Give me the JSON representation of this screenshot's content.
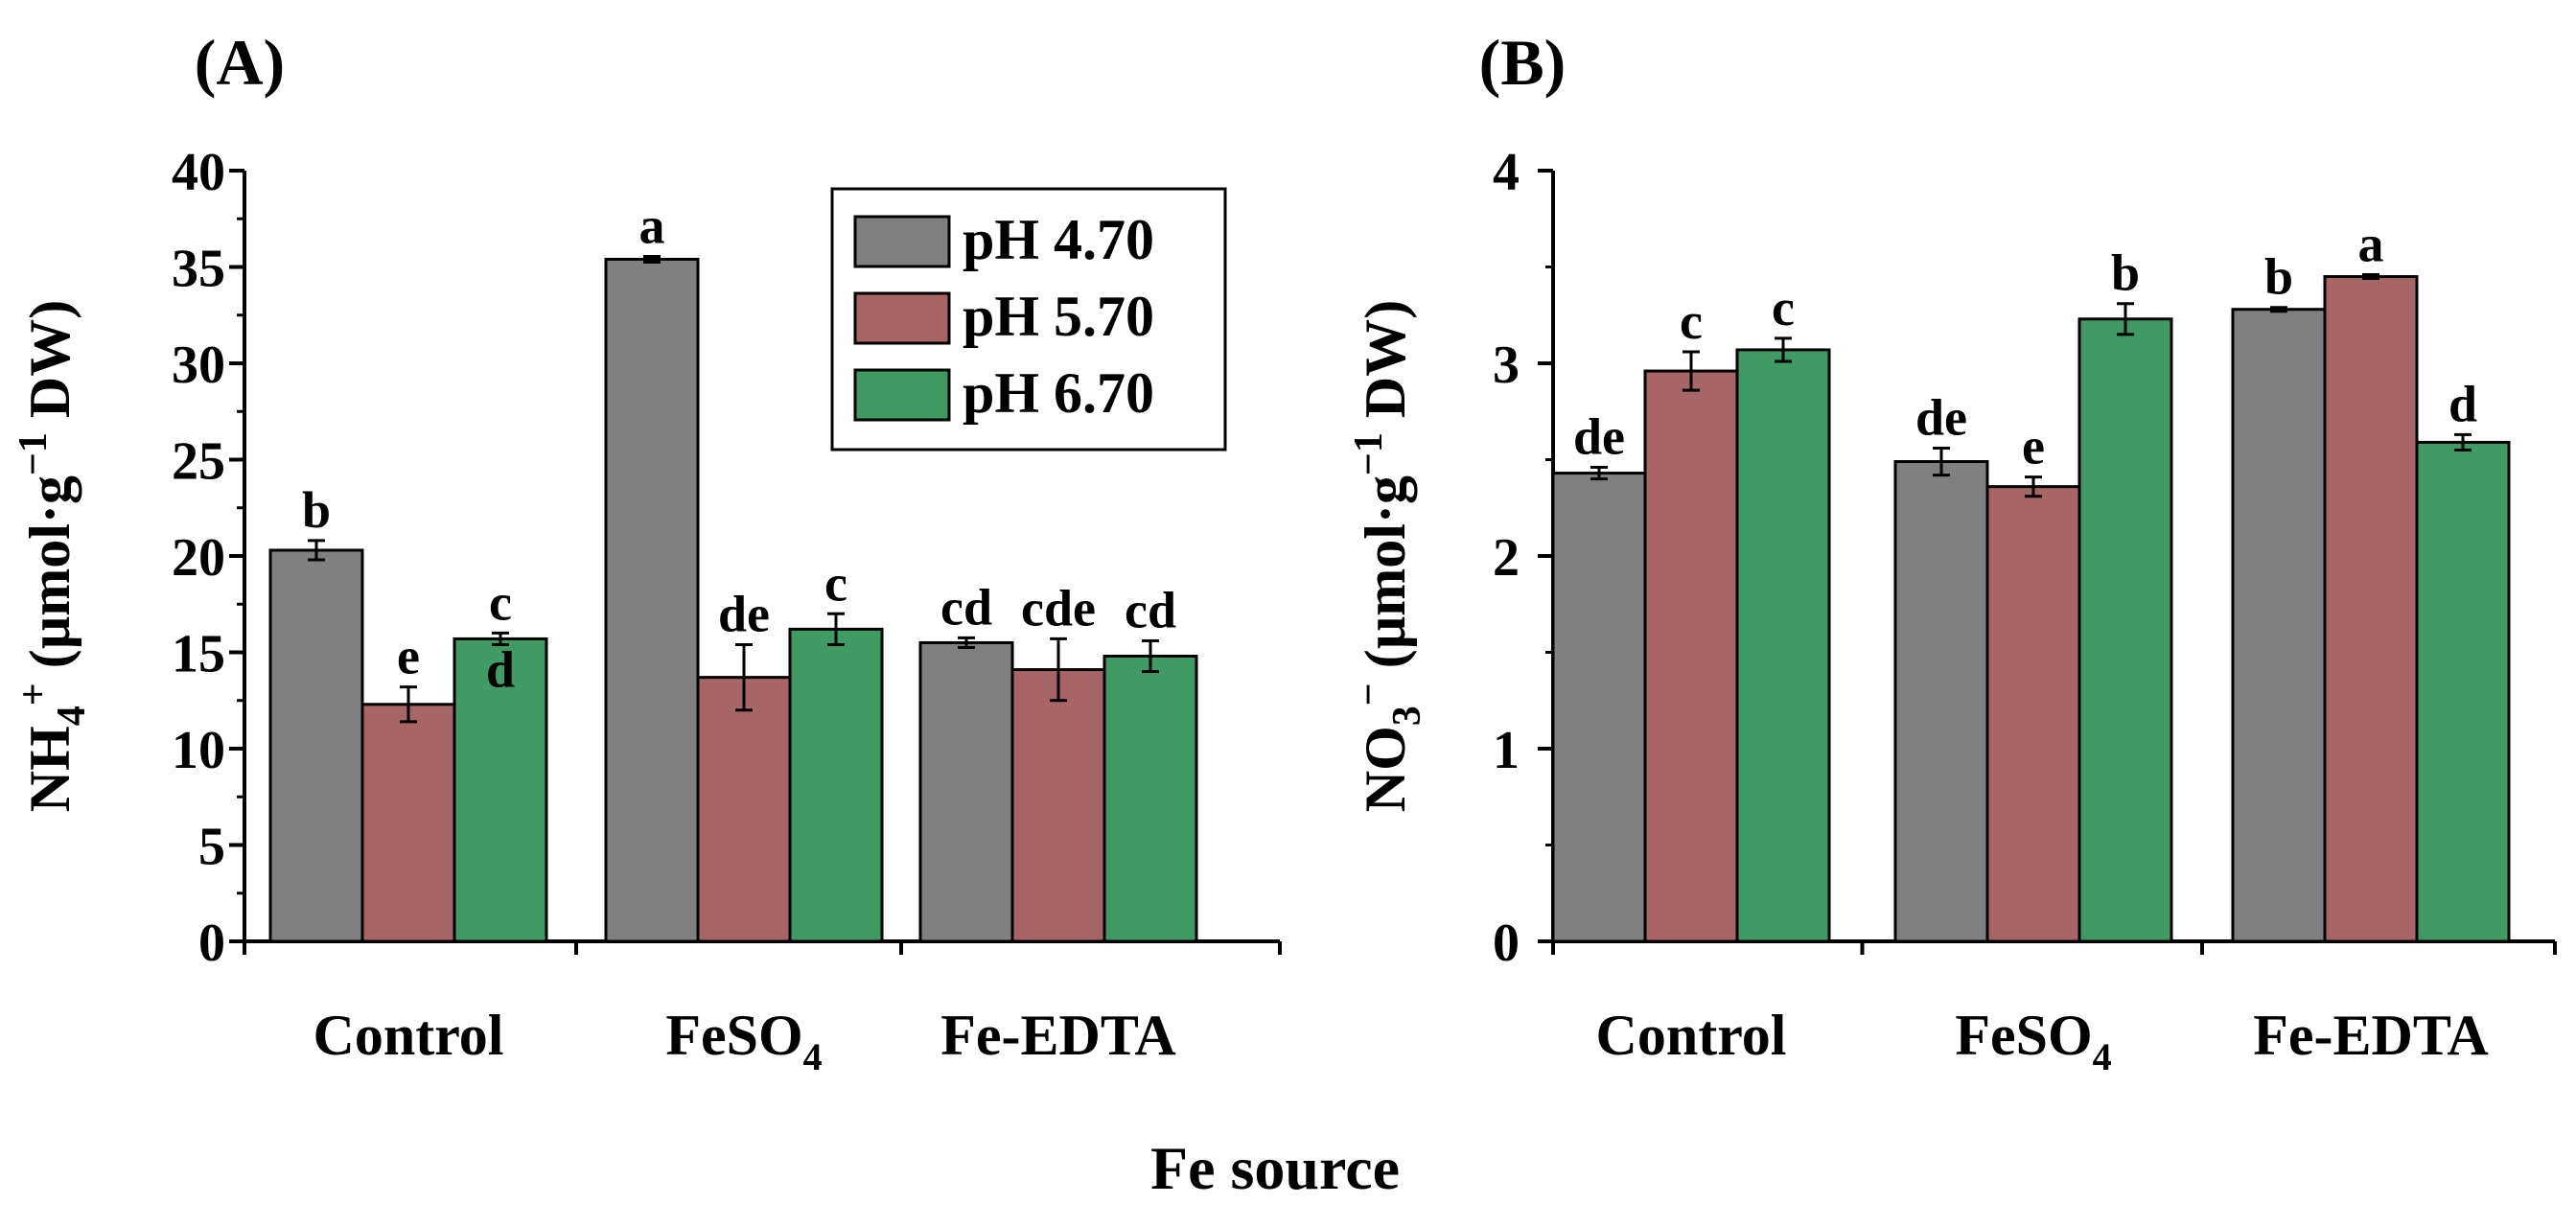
{
  "xlabel": "Fe source",
  "legend": [
    {
      "label": "pH 4.70",
      "color": "#808080"
    },
    {
      "label": "pH 5.70",
      "color": "#a86565"
    },
    {
      "label": "pH 6.70",
      "color": "#3f9a63"
    }
  ],
  "chart_data": [
    {
      "type": "bar",
      "title": "(A)",
      "ylabel_parts": [
        "NH",
        "4",
        "+",
        " (µmol·g",
        "−1",
        " DW)"
      ],
      "ylim": [
        0,
        40
      ],
      "yticks": [
        0,
        5,
        10,
        15,
        20,
        25,
        30,
        35,
        40
      ],
      "categories": [
        {
          "text": "Control",
          "sub": ""
        },
        {
          "text": "FeSO",
          "sub": "4"
        },
        {
          "text": "Fe-EDTA",
          "sub": ""
        }
      ],
      "series": [
        {
          "name": "pH 4.70",
          "values": [
            20.3,
            35.4,
            15.5
          ],
          "errors": [
            0.5,
            0.15,
            0.25
          ],
          "labels": [
            "b",
            "a",
            "cd"
          ]
        },
        {
          "name": "pH 5.70",
          "values": [
            12.3,
            13.7,
            14.1
          ],
          "errors": [
            0.9,
            1.7,
            1.6
          ],
          "labels": [
            "e",
            "de",
            "cde"
          ]
        },
        {
          "name": "pH 6.70",
          "values": [
            15.7,
            16.2,
            14.8
          ],
          "errors": [
            0.3,
            0.8,
            0.8
          ],
          "labels": [
            "c",
            "c",
            "cd"
          ]
        }
      ],
      "extra_labels": [
        {
          "category": 0,
          "series": 2,
          "text": "d"
        }
      ]
    },
    {
      "type": "bar",
      "title": "(B)",
      "ylabel_parts": [
        "NO",
        "3",
        "−",
        " (µmol·g",
        "−1",
        " DW)"
      ],
      "ylim": [
        0,
        4
      ],
      "yticks": [
        0,
        1,
        2,
        3,
        4
      ],
      "categories": [
        {
          "text": "Control",
          "sub": ""
        },
        {
          "text": "FeSO",
          "sub": "4"
        },
        {
          "text": "Fe-EDTA",
          "sub": ""
        }
      ],
      "series": [
        {
          "name": "pH 4.70",
          "values": [
            2.43,
            2.49,
            3.28
          ],
          "errors": [
            0.03,
            0.07,
            0.01
          ],
          "labels": [
            "de",
            "de",
            "b"
          ]
        },
        {
          "name": "pH 5.70",
          "values": [
            2.96,
            2.36,
            3.45
          ],
          "errors": [
            0.1,
            0.05,
            0.01
          ],
          "labels": [
            "c",
            "e",
            "a"
          ]
        },
        {
          "name": "pH 6.70",
          "values": [
            3.07,
            3.23,
            2.59
          ],
          "errors": [
            0.06,
            0.08,
            0.04
          ],
          "labels": [
            "c",
            "b",
            "d"
          ]
        }
      ],
      "extra_labels": []
    }
  ]
}
